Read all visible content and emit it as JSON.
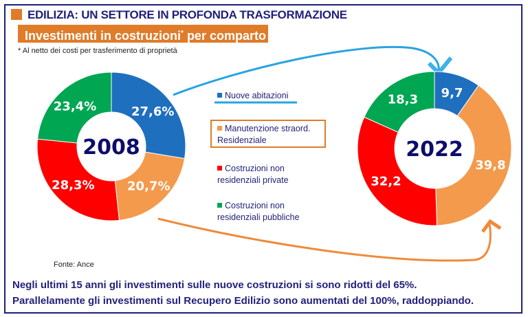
{
  "header": {
    "title": "EDILIZIA: UN SETTORE IN PROFONDA TRASFORMAZIONE",
    "subtitle": "Investimenti in costruzioni",
    "subtitle_mark": "*",
    "subtitle_rest": " per comparto",
    "footnote": "* Al netto dei costi per trasferimento di proprietà"
  },
  "source": "Fonte: Ance",
  "conclusion": [
    "Negli ultimi 15 anni gli investimenti sulle nuove costruzioni si sono ridotti del 65%.",
    "Parallelamente gli investimenti sul Recupero Edilizio sono aumentati del 100%, raddoppiando."
  ],
  "legend": [
    {
      "label": "Nuove abitazioni",
      "color": "#1f6fbf"
    },
    {
      "label": "Manutenzione straord. Residenziale",
      "color": "#f39a4d"
    },
    {
      "label": "Costruzioni non residenziali private",
      "color": "#ff0000"
    },
    {
      "label": "Costruzioni non residenziali pubbliche",
      "color": "#00a651"
    }
  ],
  "chart_data": [
    {
      "type": "pie",
      "variant": "donut",
      "center_label": "2008",
      "categories": [
        "Nuove abitazioni",
        "Manutenzione straord. Residenziale",
        "Costruzioni non residenziali private",
        "Costruzioni non residenziali pubbliche"
      ],
      "values": [
        27.6,
        20.7,
        28.3,
        23.4
      ],
      "labels": [
        "27,6%",
        "20,7%",
        "28,3%",
        "23,4%"
      ]
    },
    {
      "type": "pie",
      "variant": "donut",
      "center_label": "2022",
      "categories": [
        "Nuove abitazioni",
        "Manutenzione straord. Residenziale",
        "Costruzioni non residenziali private",
        "Costruzioni non residenziali pubbliche"
      ],
      "values": [
        9.7,
        39.8,
        32.2,
        18.3
      ],
      "labels": [
        "9,7",
        "39,8",
        "32,2",
        "18,3"
      ]
    }
  ],
  "colors": {
    "navy": "#1f1f7a",
    "orange": "#e07b2a",
    "arrow_blue": "#29a3e0",
    "arrow_orange": "#ef8a3a"
  }
}
